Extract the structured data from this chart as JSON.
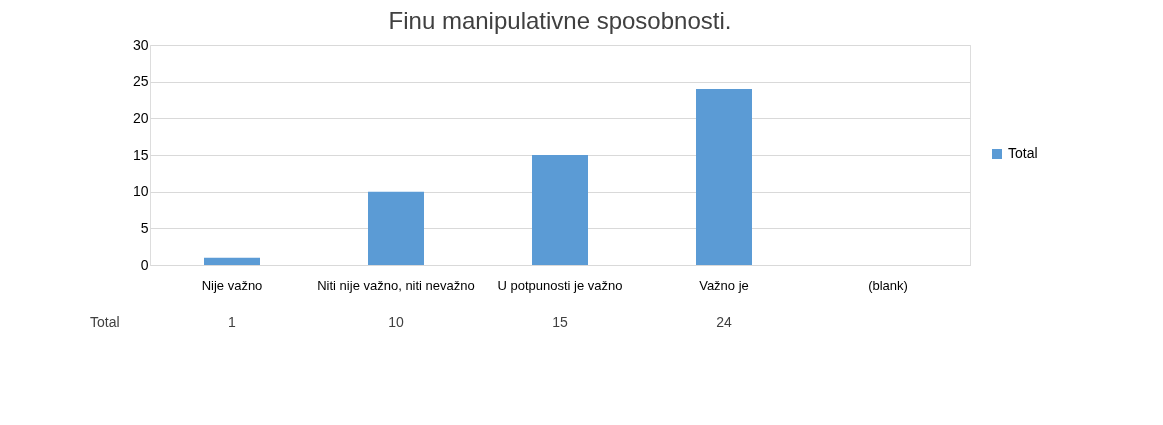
{
  "chart_data": {
    "type": "bar",
    "title": "Finu manipulativne sposobnosti.",
    "categories": [
      "Nije važno",
      "Niti nije važno, niti nevažno",
      "U potpunosti je važno",
      "Važno je",
      "(blank)"
    ],
    "series": [
      {
        "name": "Total",
        "color": "#5b9bd5",
        "values": [
          1,
          10,
          15,
          24,
          null
        ]
      }
    ],
    "ylim": [
      0,
      30
    ],
    "yticks": [
      0,
      5,
      10,
      15,
      20,
      25,
      30
    ],
    "grid": "y",
    "legend": "right",
    "data_labels": true
  }
}
